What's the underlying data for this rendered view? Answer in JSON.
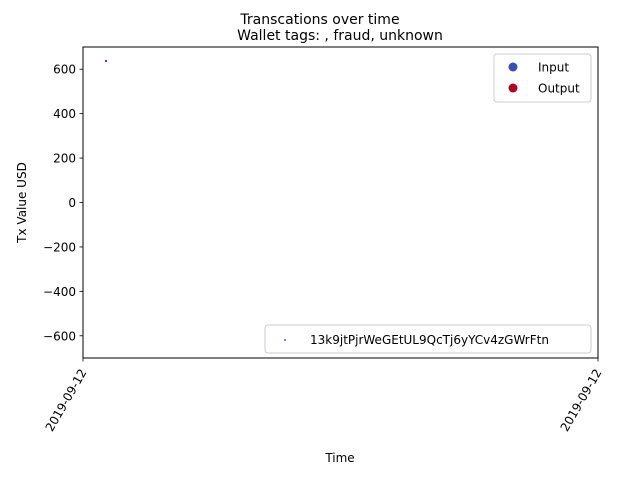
{
  "chart_data": {
    "type": "scatter",
    "suptitle": "Transcations over time",
    "title": "Wallet tags: , fraud, unknown",
    "xlabel": "Time",
    "ylabel": "Tx Value USD",
    "ylim": [
      -700,
      700
    ],
    "yticks": [
      -600,
      -400,
      -200,
      0,
      200,
      400,
      600
    ],
    "xticks": [
      "2019-09-12",
      "2019-09-12"
    ],
    "points": [
      {
        "x": "2019-09-12",
        "y": 637,
        "series": "Output"
      }
    ],
    "legend_type": {
      "placement": "upper-right",
      "entries": [
        {
          "label": "Input",
          "color": "#3b4cc0"
        },
        {
          "label": "Output",
          "color": "#b40426"
        }
      ]
    },
    "legend_wallet": {
      "placement": "lower-right",
      "entries": [
        {
          "label": "13k9jtPjrWeGEtUL9QcTj6yYCv4zGWrFtn",
          "color": "#1f77b4"
        }
      ]
    }
  }
}
